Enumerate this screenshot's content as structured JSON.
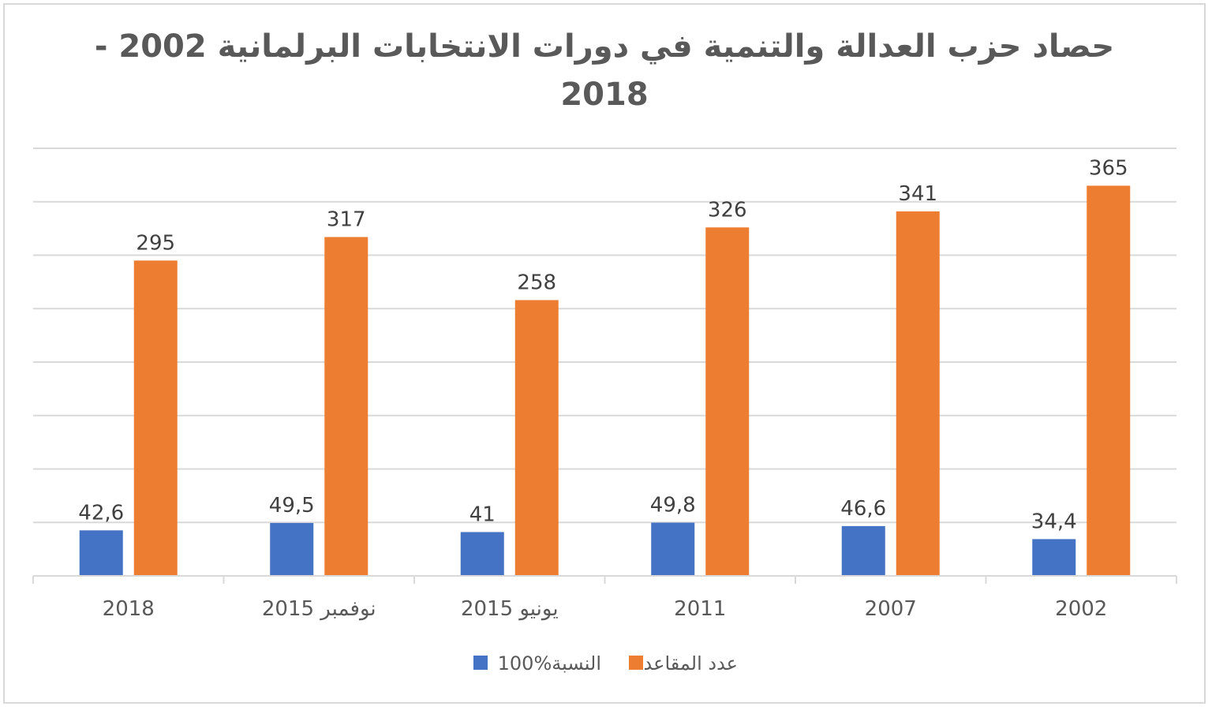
{
  "chart_data": {
    "type": "bar",
    "title_lines": [
      "حصاد حزب العدالة والتنمية في دورات الانتخابات البرلمانية 2002 -",
      "2018"
    ],
    "categories": [
      "2018",
      "2015 نوفمبر",
      "2015 يونيو",
      "2011",
      "2007",
      "2002"
    ],
    "series": [
      {
        "name": "النسبة%100",
        "color": "#4472c4",
        "values": [
          42.6,
          49.5,
          41,
          49.8,
          46.6,
          34.4
        ],
        "labels": [
          "42,6",
          "49,5",
          "41",
          "49,8",
          "46,6",
          "34,4"
        ]
      },
      {
        "name": "عدد المقاعد",
        "color": "#ed7d31",
        "values": [
          295,
          317,
          258,
          326,
          341,
          365
        ],
        "labels": [
          "295",
          "317",
          "258",
          "326",
          "341",
          "365"
        ]
      }
    ],
    "ylim": [
      0,
      400
    ],
    "y_gridline_step": 50,
    "y_axis_labels_shown": false,
    "grid": true,
    "legend_position": "bottom",
    "gridline_color": "#d9d9d9"
  }
}
